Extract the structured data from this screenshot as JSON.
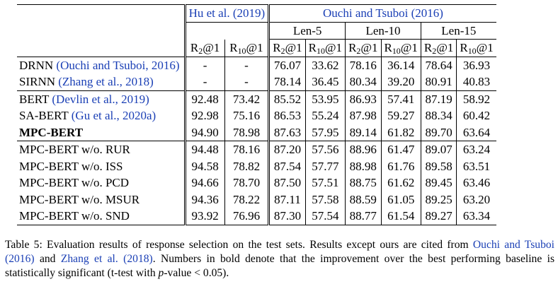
{
  "table": {
    "group_headers": {
      "hu": "Hu et al. (2019)",
      "ouchi": "Ouchi and Tsuboi (2016)"
    },
    "len_headers": [
      "Len-5",
      "Len-10",
      "Len-15"
    ],
    "metric_r2": "R",
    "metric_r2_sub": "2",
    "metric_r10": "R",
    "metric_r10_sub": "10",
    "metric_at": "@1",
    "rows": [
      {
        "model": "DRNN",
        "cite": "(Ouchi and Tsuboi, 2016)",
        "values": [
          "-",
          "-",
          "76.07",
          "33.62",
          "78.16",
          "36.14",
          "78.64",
          "36.93"
        ],
        "bold": false
      },
      {
        "model": "SIRNN",
        "cite": "(Zhang et al., 2018)",
        "values": [
          "-",
          "-",
          "78.14",
          "36.45",
          "80.34",
          "39.20",
          "80.91",
          "40.83"
        ],
        "bold": false
      },
      {
        "model": "BERT",
        "cite": "(Devlin et al., 2019)",
        "values": [
          "92.48",
          "73.42",
          "85.52",
          "53.95",
          "86.93",
          "57.41",
          "87.19",
          "58.92"
        ],
        "bold": false
      },
      {
        "model": "SA-BERT",
        "cite": "(Gu et al., 2020a)",
        "values": [
          "92.98",
          "75.16",
          "86.53",
          "55.24",
          "87.98",
          "59.27",
          "88.34",
          "60.42"
        ],
        "bold": false
      },
      {
        "model": "MPC-BERT",
        "cite": "",
        "values": [
          "94.90",
          "78.98",
          "87.63",
          "57.95",
          "89.14",
          "61.82",
          "89.70",
          "63.64"
        ],
        "bold": true
      },
      {
        "model": "MPC-BERT w/o. RUR",
        "cite": "",
        "values": [
          "94.48",
          "78.16",
          "87.20",
          "57.56",
          "88.96",
          "61.47",
          "89.07",
          "63.24"
        ],
        "bold": false
      },
      {
        "model": "MPC-BERT w/o. ISS",
        "cite": "",
        "values": [
          "94.58",
          "78.82",
          "87.54",
          "57.77",
          "88.98",
          "61.76",
          "89.58",
          "63.51"
        ],
        "bold": false
      },
      {
        "model": "MPC-BERT w/o. PCD",
        "cite": "",
        "values": [
          "94.66",
          "78.70",
          "87.50",
          "57.51",
          "88.75",
          "61.62",
          "89.45",
          "63.46"
        ],
        "bold": false
      },
      {
        "model": "MPC-BERT w/o. MSUR",
        "cite": "",
        "values": [
          "94.36",
          "78.22",
          "87.11",
          "57.58",
          "88.59",
          "61.05",
          "89.25",
          "63.20"
        ],
        "bold": false
      },
      {
        "model": "MPC-BERT w/o. SND",
        "cite": "",
        "values": [
          "93.92",
          "76.96",
          "87.30",
          "57.54",
          "88.77",
          "61.54",
          "89.27",
          "63.34"
        ],
        "bold": false
      }
    ]
  },
  "caption": {
    "prefix": "Table 5: Evaluation results of response selection on the test sets. Results except ours are cited from ",
    "cite1": "Ouchi and Tsuboi (2016)",
    "middle": " and ",
    "cite2": "Zhang et al. (2018)",
    "after_cites": ". Numbers in bold denote that the improvement over the best performing baseline is statistically significant (t-test with ",
    "p_italic": "p",
    "suffix": "-value < 0.05)."
  },
  "colors": {
    "citation": "#1a3fb5",
    "text": "#000000"
  }
}
